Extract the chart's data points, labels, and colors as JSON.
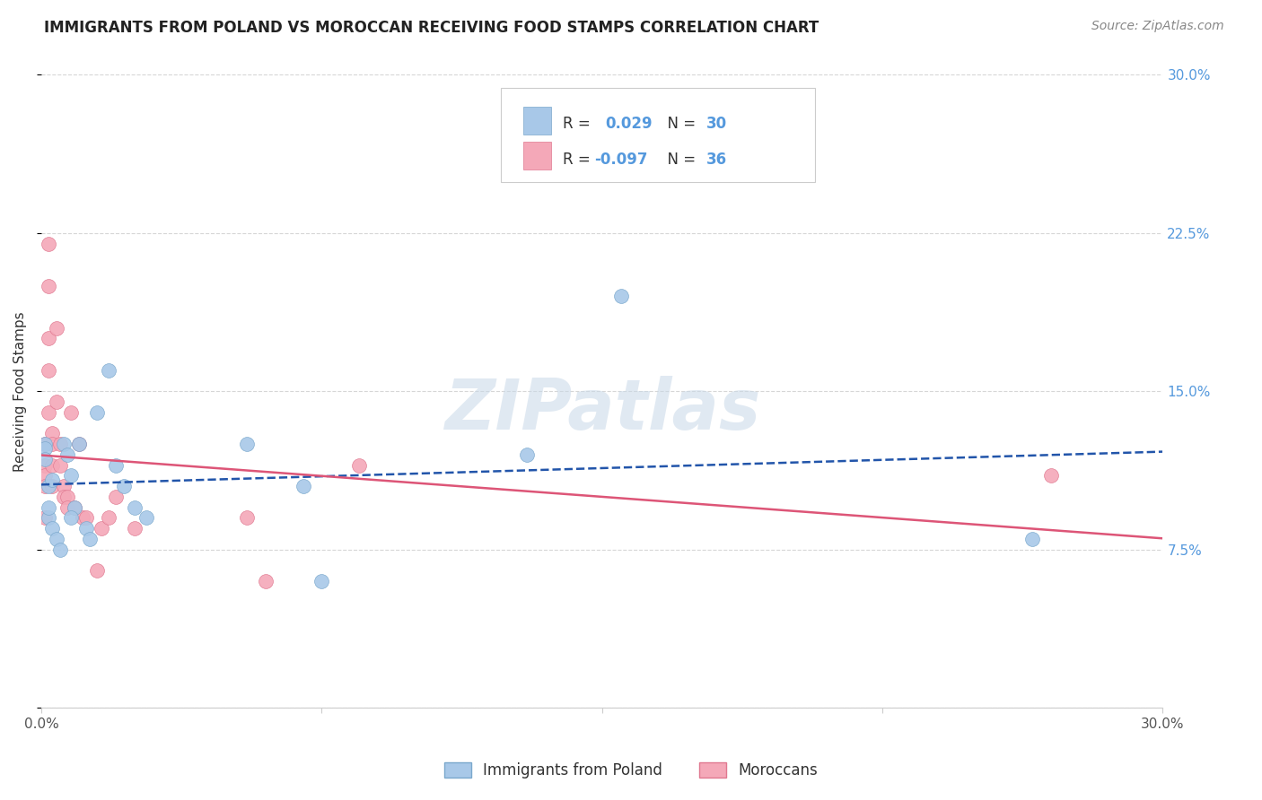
{
  "title": "IMMIGRANTS FROM POLAND VS MOROCCAN RECEIVING FOOD STAMPS CORRELATION CHART",
  "source": "Source: ZipAtlas.com",
  "ylabel": "Receiving Food Stamps",
  "xlim": [
    0.0,
    0.3
  ],
  "ylim": [
    0.0,
    0.3
  ],
  "xtick_positions": [
    0.0,
    0.075,
    0.15,
    0.225,
    0.3
  ],
  "xtick_labels": [
    "0.0%",
    "",
    "",
    "",
    "30.0%"
  ],
  "ytick_positions": [
    0.0,
    0.075,
    0.15,
    0.225,
    0.3
  ],
  "ytick_labels_right": [
    "",
    "7.5%",
    "15.0%",
    "22.5%",
    "30.0%"
  ],
  "poland_color": "#a8c8e8",
  "morocco_color": "#f4a8b8",
  "poland_edge_color": "#7aa8cc",
  "morocco_edge_color": "#e07890",
  "poland_R": 0.029,
  "poland_N": 30,
  "morocco_R": -0.097,
  "morocco_N": 36,
  "legend_label_poland": "Immigrants from Poland",
  "legend_label_morocco": "Moroccans",
  "poland_x": [
    0.001,
    0.001,
    0.001,
    0.002,
    0.002,
    0.003,
    0.003,
    0.004,
    0.005,
    0.006,
    0.007,
    0.008,
    0.009,
    0.01,
    0.012,
    0.015,
    0.018,
    0.02,
    0.022,
    0.025,
    0.028,
    0.055,
    0.075,
    0.13,
    0.155,
    0.265,
    0.008,
    0.013,
    0.07,
    0.002
  ],
  "poland_y": [
    0.125,
    0.123,
    0.118,
    0.105,
    0.09,
    0.108,
    0.085,
    0.08,
    0.075,
    0.125,
    0.12,
    0.11,
    0.095,
    0.125,
    0.085,
    0.14,
    0.16,
    0.115,
    0.105,
    0.095,
    0.09,
    0.125,
    0.06,
    0.12,
    0.195,
    0.08,
    0.09,
    0.08,
    0.105,
    0.095
  ],
  "morocco_x": [
    0.001,
    0.001,
    0.001,
    0.001,
    0.001,
    0.002,
    0.002,
    0.002,
    0.002,
    0.002,
    0.003,
    0.003,
    0.003,
    0.003,
    0.004,
    0.004,
    0.005,
    0.005,
    0.006,
    0.006,
    0.007,
    0.007,
    0.008,
    0.009,
    0.01,
    0.011,
    0.012,
    0.015,
    0.016,
    0.018,
    0.02,
    0.025,
    0.055,
    0.06,
    0.085,
    0.27
  ],
  "morocco_y": [
    0.125,
    0.115,
    0.11,
    0.105,
    0.09,
    0.22,
    0.2,
    0.175,
    0.16,
    0.14,
    0.13,
    0.125,
    0.115,
    0.105,
    0.18,
    0.145,
    0.125,
    0.115,
    0.105,
    0.1,
    0.1,
    0.095,
    0.14,
    0.095,
    0.125,
    0.09,
    0.09,
    0.065,
    0.085,
    0.09,
    0.1,
    0.085,
    0.09,
    0.06,
    0.115,
    0.11
  ],
  "watermark": "ZIPatlas",
  "background_color": "#ffffff",
  "grid_color": "#cccccc",
  "trendline_poland_color": "#2255aa",
  "trendline_morocco_color": "#dd5577",
  "axis_label_color": "#5599dd",
  "text_color": "#333333",
  "title_color": "#222222",
  "source_color": "#888888"
}
